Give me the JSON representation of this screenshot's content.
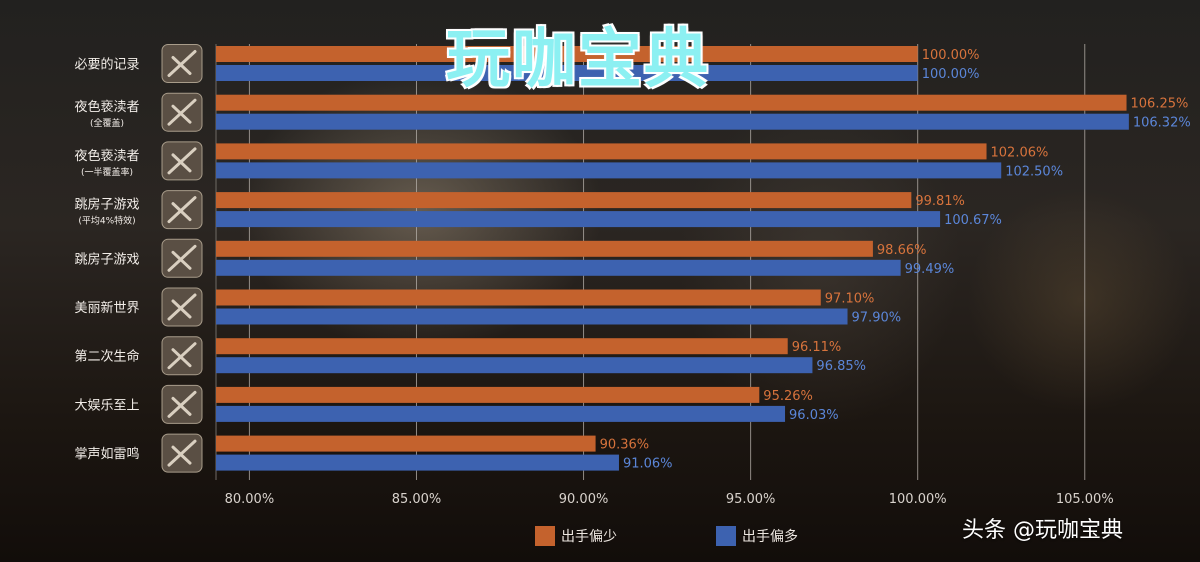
{
  "watermark": "玩咖宝典",
  "credit": "头条 @玩咖宝典",
  "colors": {
    "orange": "#c4622d",
    "blue": "#3d62b0",
    "orange_label": "#d7733c",
    "blue_label": "#5b86d8",
    "grid": "#b8b2ac"
  },
  "chart_data": {
    "type": "bar",
    "orientation": "horizontal",
    "categories": [
      [
        "必要的记录"
      ],
      [
        "夜色亵渎者",
        "(全覆盖)"
      ],
      [
        "夜色亵渎者",
        "(一半覆盖率)"
      ],
      [
        "跳房子游戏",
        "(平均4%特效)"
      ],
      [
        "跳房子游戏"
      ],
      [
        "美丽新世界"
      ],
      [
        "第二次生命"
      ],
      [
        "大娱乐至上"
      ],
      [
        "掌声如雷鸣"
      ]
    ],
    "series": [
      {
        "name": "出手偏少",
        "color": "#c4622d",
        "values": [
          100.0,
          106.25,
          102.06,
          99.81,
          98.66,
          97.1,
          96.11,
          95.26,
          90.36
        ],
        "labels": [
          "100.00%",
          "106.25%",
          "102.06%",
          "99.81%",
          "98.66%",
          "97.10%",
          "96.11%",
          "95.26%",
          "90.36%"
        ]
      },
      {
        "name": "出手偏多",
        "color": "#3d62b0",
        "values": [
          100.0,
          106.32,
          102.5,
          100.67,
          99.49,
          97.9,
          96.85,
          96.03,
          91.06
        ],
        "labels": [
          "100.00%",
          "106.32%",
          "102.50%",
          "100.67%",
          "99.49%",
          "97.90%",
          "96.85%",
          "96.03%",
          "91.06%"
        ]
      }
    ],
    "xlim": [
      79,
      108
    ],
    "xticks": [
      80,
      85,
      90,
      95,
      100,
      105
    ],
    "xtick_labels": [
      "80.00%",
      "85.00%",
      "90.00%",
      "95.00%",
      "100.00%",
      "105.00%"
    ],
    "grid": true,
    "legend": "bottom-center"
  }
}
